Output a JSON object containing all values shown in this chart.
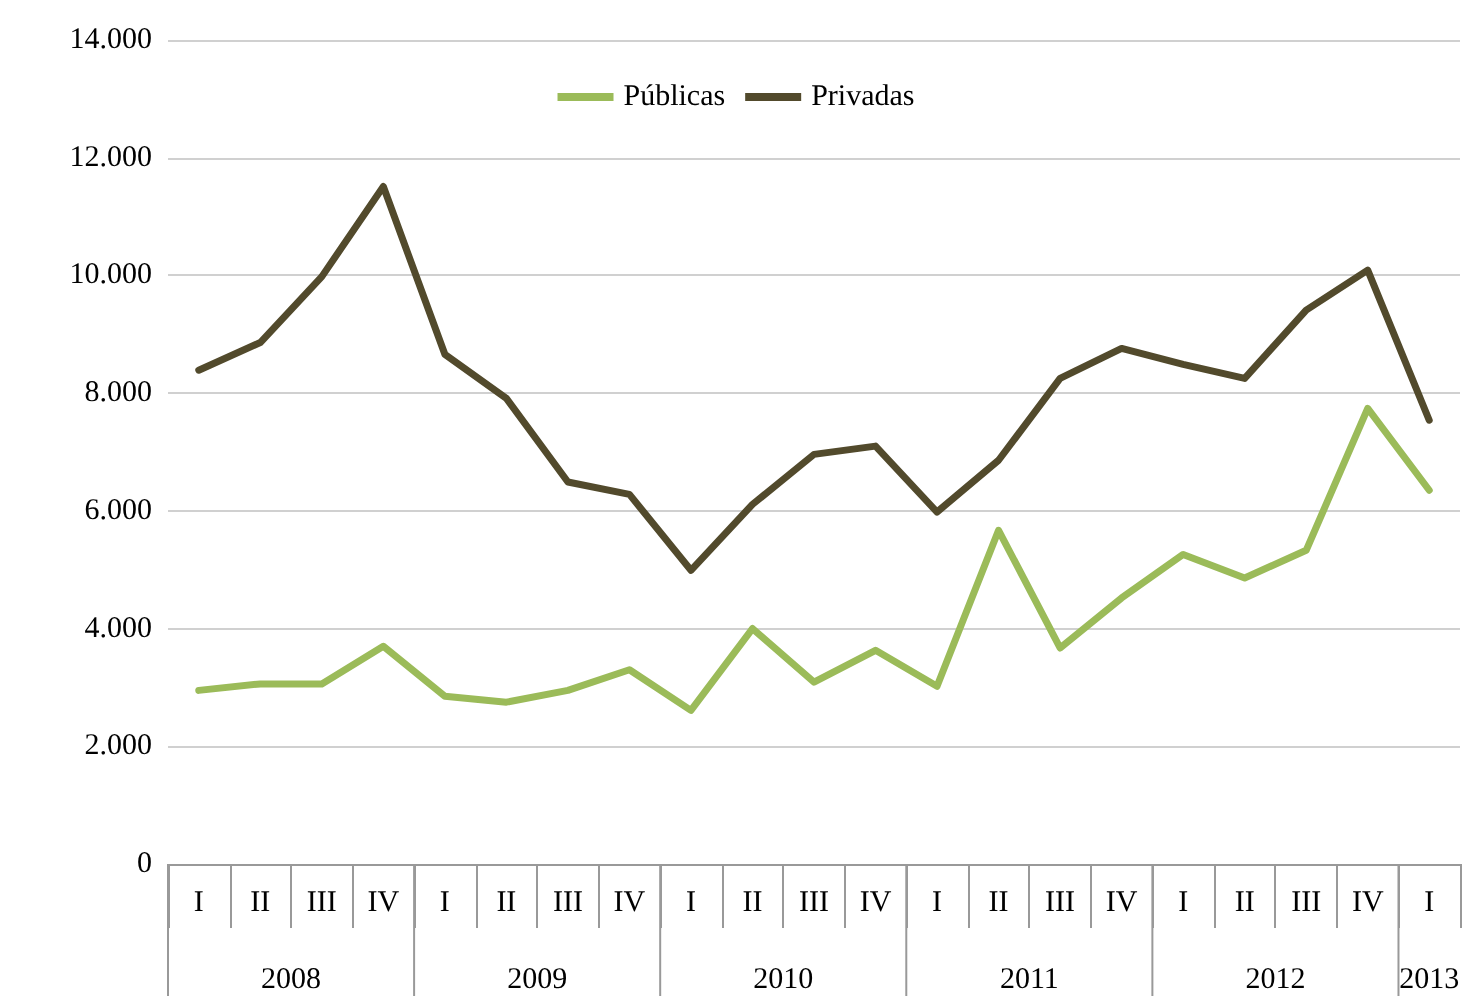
{
  "chart_data": {
    "type": "line",
    "categories": [
      "I",
      "II",
      "III",
      "IV",
      "I",
      "II",
      "III",
      "IV",
      "I",
      "II",
      "III",
      "IV",
      "I",
      "II",
      "III",
      "IV",
      "I",
      "II",
      "III",
      "IV",
      "I"
    ],
    "series": [
      {
        "name": "Públicas",
        "color": "#9bbb59",
        "values": [
          2950,
          3060,
          3060,
          3700,
          2850,
          2750,
          2950,
          3300,
          2610,
          4000,
          3090,
          3630,
          3020,
          5670,
          3670,
          4520,
          5260,
          4860,
          5330,
          7740,
          6350
        ]
      },
      {
        "name": "Privadas",
        "color": "#524a2c",
        "values": [
          8390,
          8860,
          9980,
          11510,
          8660,
          7910,
          6490,
          6280,
          4990,
          6110,
          6960,
          7100,
          5980,
          6860,
          8250,
          8760,
          8490,
          8250,
          9410,
          10090,
          7540
        ]
      }
    ],
    "annotations": [
      "2008",
      "2009",
      "2010",
      "2011",
      "2012",
      "2013"
    ],
    "ylim": [
      0,
      14000
    ],
    "yticks": [
      0,
      {
        "value": 2000,
        "label": "2.000"
      },
      {
        "value": 4000,
        "label": "4.000"
      },
      {
        "value": 6000,
        "label": "6.000"
      },
      {
        "value": 8000,
        "label": "8.000"
      },
      {
        "value": 10000,
        "label": "10.000"
      },
      {
        "value": 12000,
        "label": "12.000"
      },
      {
        "value": 14000,
        "label": "14.000"
      }
    ],
    "grid": "y",
    "legend": "top",
    "marker": "none",
    "line_style": "solid"
  }
}
